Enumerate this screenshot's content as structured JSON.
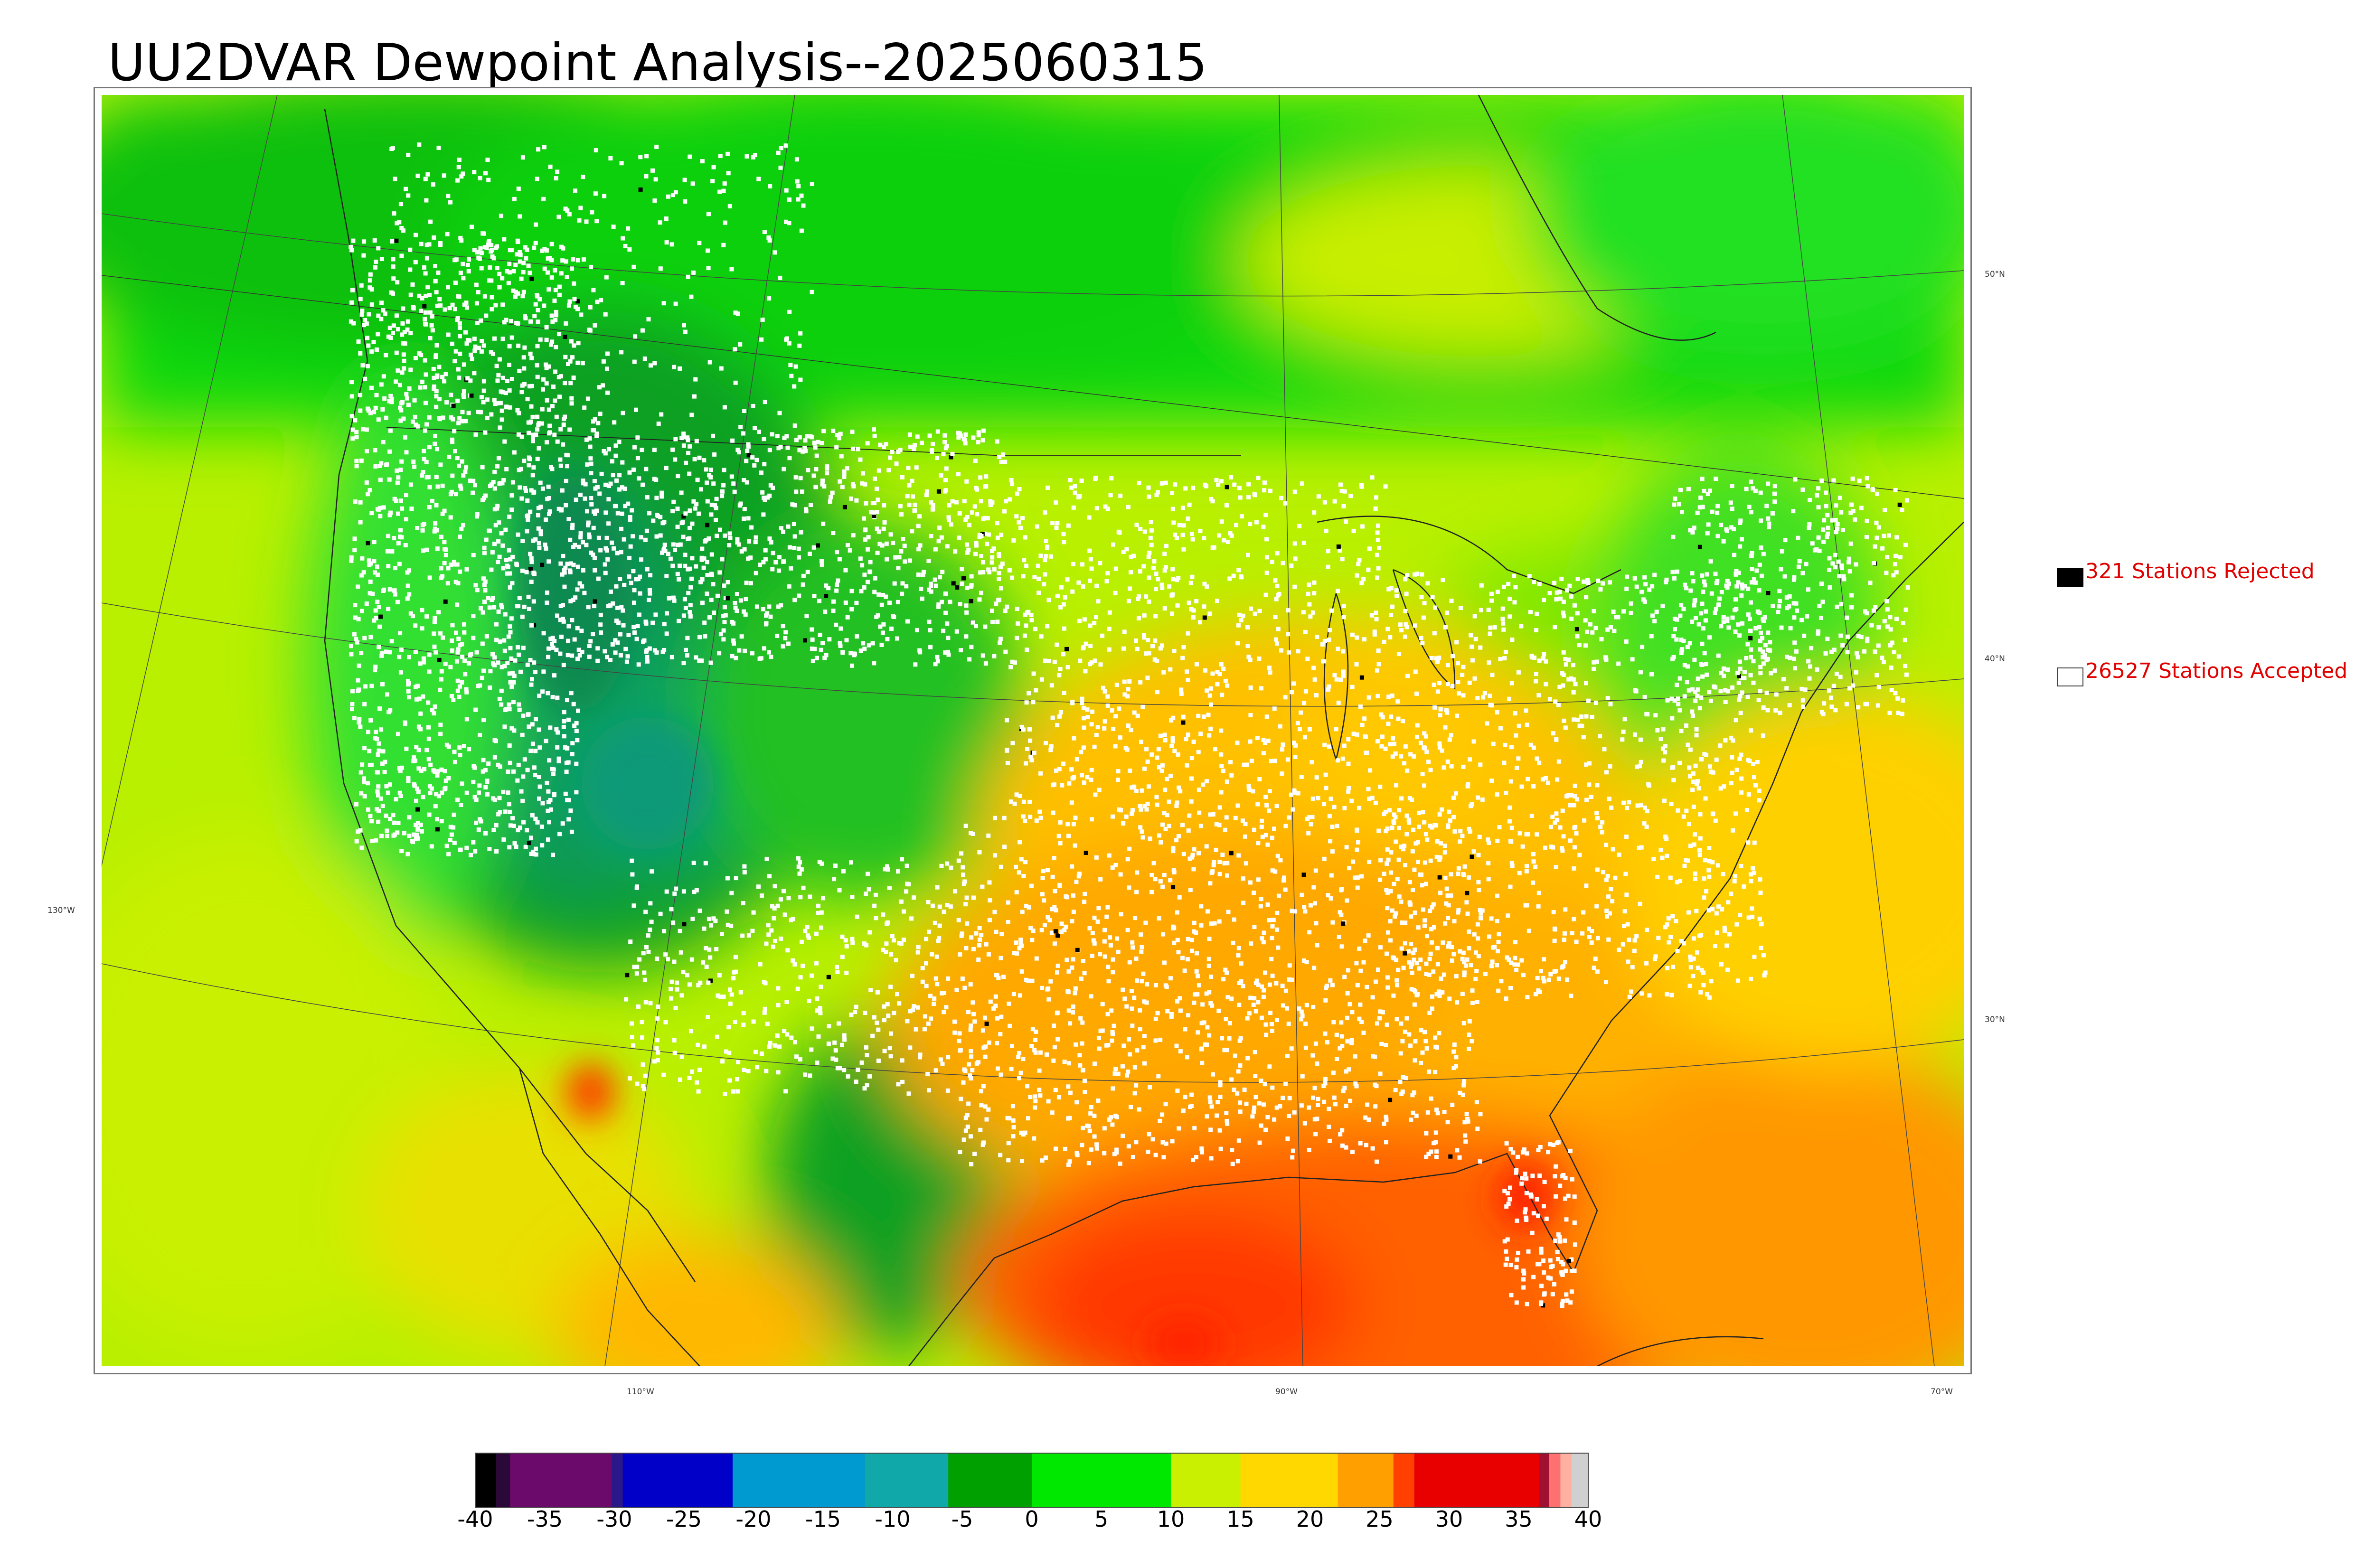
{
  "title": "UU2DVAR Dewpoint Analysis--2025060315",
  "longitude_labels": [
    "130°W",
    "110°W",
    "90°W",
    "70°W"
  ],
  "latitude_labels": [
    "50°N",
    "40°N",
    "30°N"
  ],
  "legend": {
    "rejected": {
      "label": "321 Stations Rejected",
      "swatch_color": "#000000"
    },
    "accepted": {
      "label": "26527 Stations Accepted",
      "swatch_color": "#ffffff"
    }
  },
  "colorbar": {
    "ticks": [
      "-40",
      "-35",
      "-30",
      "-25",
      "-20",
      "-15",
      "-10",
      "-5",
      "0",
      "5",
      "10",
      "15",
      "20",
      "25",
      "30",
      "35",
      "40"
    ],
    "range": [
      -40,
      40
    ],
    "stops": [
      {
        "from": -40,
        "to": -38.5,
        "color": "#000000"
      },
      {
        "from": -38.5,
        "to": -37.5,
        "color": "#2a0838"
      },
      {
        "from": -37.5,
        "to": -30.2,
        "color": "#6b0a6b"
      },
      {
        "from": -30.2,
        "to": -29.4,
        "color": "#2a1888"
      },
      {
        "from": -29.4,
        "to": -21.5,
        "color": "#0000c8"
      },
      {
        "from": -21.5,
        "to": -12,
        "color": "#0099d0"
      },
      {
        "from": -12,
        "to": -6,
        "color": "#10a8a8"
      },
      {
        "from": -6,
        "to": 0,
        "color": "#00a000"
      },
      {
        "from": 0,
        "to": 10,
        "color": "#00e800"
      },
      {
        "from": 10,
        "to": 15,
        "color": "#c8f000"
      },
      {
        "from": 15,
        "to": 22,
        "color": "#ffd800"
      },
      {
        "from": 22,
        "to": 26,
        "color": "#ffa000"
      },
      {
        "from": 26,
        "to": 27.5,
        "color": "#ff4000"
      },
      {
        "from": 27.5,
        "to": 36.5,
        "color": "#e80000"
      },
      {
        "from": 36.5,
        "to": 37.2,
        "color": "#a01030"
      },
      {
        "from": 37.2,
        "to": 38,
        "color": "#ff7070"
      },
      {
        "from": 38,
        "to": 38.8,
        "color": "#ffb0a0"
      },
      {
        "from": 38.8,
        "to": 40,
        "color": "#d0d0d0"
      }
    ]
  },
  "colors": {
    "accepted_station": "#ffffff",
    "rejected_station": "#000000",
    "legend_text": "#e00000"
  }
}
